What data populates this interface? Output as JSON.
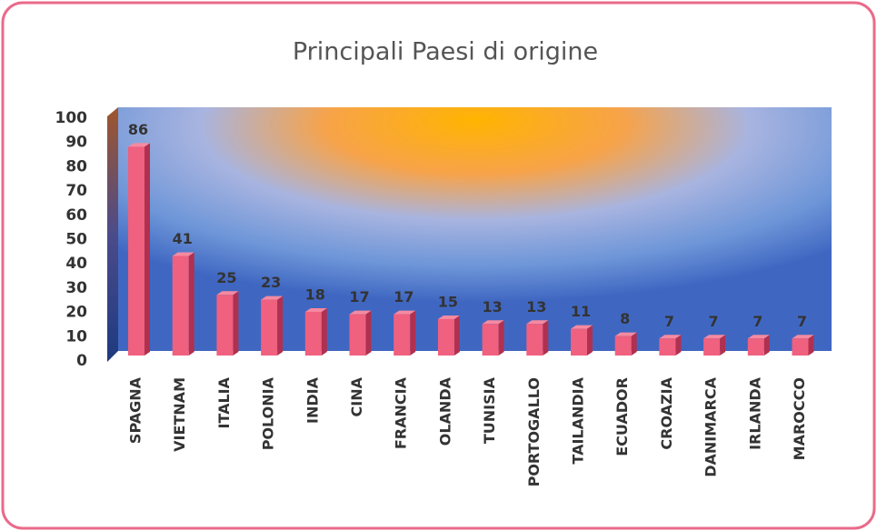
{
  "chart_data": {
    "type": "bar",
    "title": "Principali Paesi di origine",
    "categories": [
      "SPAGNA",
      "VIETNAM",
      "ITALIA",
      "POLONIA",
      "INDIA",
      "CINA",
      "FRANCIA",
      "OLANDA",
      "TUNISIA",
      "PORTOGALLO",
      "TAILANDIA",
      "ECUADOR",
      "CROAZIA",
      "DANIMARCA",
      "IRLANDA",
      "MAROCCO"
    ],
    "values": [
      86,
      41,
      25,
      23,
      18,
      17,
      17,
      15,
      13,
      13,
      11,
      8,
      7,
      7,
      7,
      7
    ],
    "color": "#f0607f",
    "ylim": [
      0,
      100
    ],
    "yticks": [
      0,
      10,
      20,
      30,
      40,
      50,
      60,
      70,
      80,
      90,
      100
    ]
  }
}
